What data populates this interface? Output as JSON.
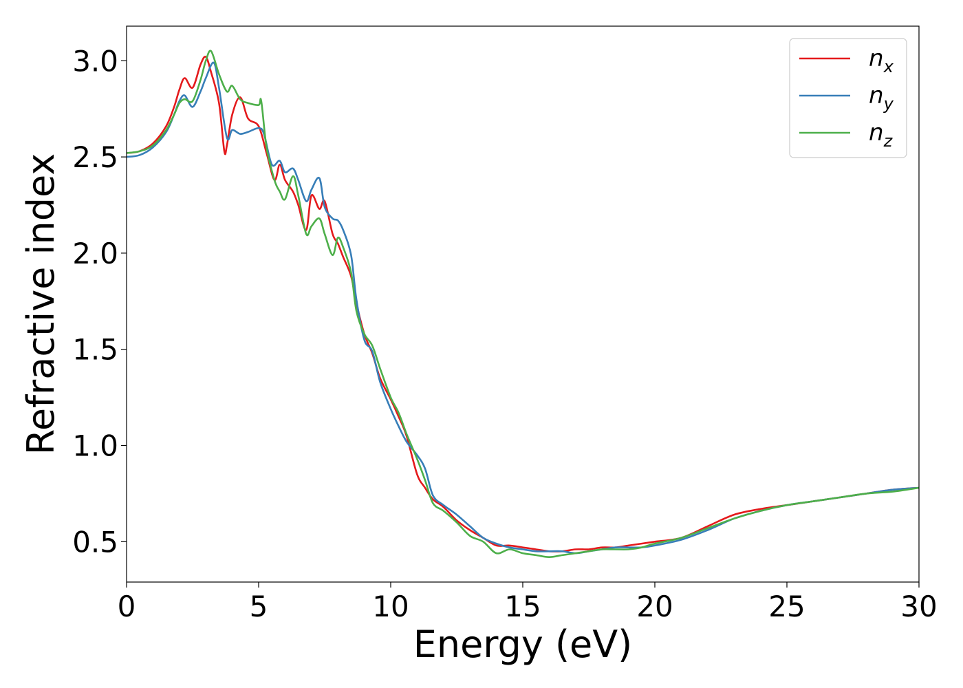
{
  "chart_data": {
    "type": "line",
    "xlabel": "Energy (eV)",
    "ylabel": "Refractive index",
    "xlim": [
      0,
      30
    ],
    "ylim": [
      0.29,
      3.18
    ],
    "xticks": [
      0,
      5,
      10,
      15,
      20,
      25,
      30
    ],
    "xtick_labels": [
      "0",
      "5",
      "10",
      "15",
      "20",
      "25",
      "30"
    ],
    "yticks": [
      0.5,
      1.0,
      1.5,
      2.0,
      2.5,
      3.0
    ],
    "ytick_labels": [
      "0.5",
      "1.0",
      "1.5",
      "2.0",
      "2.5",
      "3.0"
    ],
    "grid": false,
    "legend_position": "top-right",
    "series": [
      {
        "name": "n",
        "subscript": "x",
        "color": "#e41a1c",
        "x": [
          0,
          0.5,
          1.0,
          1.5,
          1.8,
          2.0,
          2.2,
          2.5,
          2.8,
          3.0,
          3.2,
          3.5,
          3.7,
          3.8,
          4.0,
          4.3,
          4.6,
          5.0,
          5.3,
          5.6,
          5.8,
          6.0,
          6.3,
          6.5,
          6.8,
          7.0,
          7.3,
          7.5,
          7.8,
          8.0,
          8.2,
          8.5,
          8.7,
          9.0,
          9.3,
          9.6,
          10.0,
          10.3,
          10.6,
          11.0,
          11.3,
          11.6,
          12.0,
          12.5,
          13.0,
          13.5,
          14.0,
          14.5,
          15.0,
          15.5,
          16.0,
          16.5,
          17.0,
          17.5,
          18.0,
          18.5,
          19.0,
          19.5,
          20.0,
          21.0,
          22.0,
          23.0,
          24.0,
          25.0,
          26.0,
          27.0,
          28.0,
          29.0,
          30.0
        ],
        "values": [
          2.52,
          2.53,
          2.57,
          2.66,
          2.76,
          2.85,
          2.91,
          2.86,
          2.98,
          3.02,
          2.94,
          2.78,
          2.53,
          2.56,
          2.72,
          2.81,
          2.7,
          2.66,
          2.52,
          2.38,
          2.46,
          2.38,
          2.32,
          2.25,
          2.12,
          2.3,
          2.23,
          2.27,
          2.1,
          2.05,
          1.98,
          1.88,
          1.74,
          1.58,
          1.48,
          1.35,
          1.24,
          1.15,
          1.05,
          0.85,
          0.78,
          0.72,
          0.68,
          0.61,
          0.56,
          0.52,
          0.48,
          0.48,
          0.47,
          0.46,
          0.45,
          0.45,
          0.46,
          0.46,
          0.47,
          0.47,
          0.48,
          0.49,
          0.5,
          0.52,
          0.58,
          0.64,
          0.67,
          0.69,
          0.71,
          0.73,
          0.75,
          0.77,
          0.78
        ]
      },
      {
        "name": "n",
        "subscript": "y",
        "color": "#377eb8",
        "x": [
          0,
          0.5,
          1.0,
          1.5,
          1.8,
          2.0,
          2.2,
          2.5,
          2.8,
          3.0,
          3.3,
          3.5,
          3.8,
          4.0,
          4.3,
          4.6,
          5.0,
          5.2,
          5.5,
          5.8,
          6.0,
          6.3,
          6.5,
          6.8,
          7.0,
          7.3,
          7.5,
          7.8,
          8.0,
          8.2,
          8.5,
          8.7,
          9.0,
          9.3,
          9.6,
          10.0,
          10.3,
          10.6,
          11.0,
          11.3,
          11.6,
          12.0,
          12.5,
          13.0,
          13.5,
          14.0,
          14.5,
          15.0,
          15.5,
          16.0,
          16.5,
          17.0,
          17.5,
          18.0,
          18.5,
          19.0,
          19.5,
          20.0,
          21.0,
          22.0,
          23.0,
          24.0,
          25.0,
          26.0,
          27.0,
          28.0,
          29.0,
          30.0
        ],
        "values": [
          2.5,
          2.51,
          2.55,
          2.63,
          2.72,
          2.79,
          2.82,
          2.76,
          2.84,
          2.91,
          2.99,
          2.86,
          2.6,
          2.64,
          2.62,
          2.63,
          2.65,
          2.62,
          2.46,
          2.48,
          2.42,
          2.44,
          2.38,
          2.27,
          2.33,
          2.39,
          2.24,
          2.18,
          2.17,
          2.12,
          1.99,
          1.76,
          1.55,
          1.49,
          1.33,
          1.19,
          1.1,
          1.02,
          0.95,
          0.88,
          0.74,
          0.69,
          0.64,
          0.58,
          0.52,
          0.49,
          0.47,
          0.46,
          0.45,
          0.45,
          0.45,
          0.44,
          0.45,
          0.46,
          0.47,
          0.47,
          0.47,
          0.48,
          0.51,
          0.56,
          0.62,
          0.66,
          0.69,
          0.71,
          0.73,
          0.75,
          0.77,
          0.78
        ]
      },
      {
        "name": "n",
        "subscript": "z",
        "color": "#4daf4a",
        "x": [
          0,
          0.5,
          1.0,
          1.5,
          1.8,
          2.0,
          2.2,
          2.5,
          2.8,
          3.0,
          3.2,
          3.5,
          3.8,
          4.0,
          4.3,
          4.6,
          5.0,
          5.1,
          5.3,
          5.6,
          5.8,
          6.0,
          6.3,
          6.5,
          6.8,
          7.0,
          7.3,
          7.5,
          7.8,
          8.0,
          8.2,
          8.5,
          8.7,
          9.0,
          9.3,
          9.6,
          10.0,
          10.3,
          10.6,
          11.0,
          11.3,
          11.6,
          12.0,
          12.5,
          13.0,
          13.5,
          14.0,
          14.5,
          15.0,
          15.5,
          16.0,
          16.5,
          17.0,
          17.5,
          18.0,
          18.5,
          19.0,
          19.5,
          20.0,
          21.0,
          22.0,
          23.0,
          24.0,
          25.0,
          26.0,
          27.0,
          28.0,
          29.0,
          30.0
        ],
        "values": [
          2.52,
          2.53,
          2.56,
          2.64,
          2.72,
          2.78,
          2.8,
          2.79,
          2.9,
          3.0,
          3.05,
          2.93,
          2.84,
          2.87,
          2.8,
          2.78,
          2.77,
          2.79,
          2.55,
          2.38,
          2.32,
          2.28,
          2.4,
          2.3,
          2.1,
          2.14,
          2.18,
          2.1,
          1.99,
          2.08,
          2.03,
          1.9,
          1.7,
          1.58,
          1.52,
          1.4,
          1.25,
          1.17,
          1.06,
          0.93,
          0.82,
          0.7,
          0.66,
          0.6,
          0.53,
          0.5,
          0.44,
          0.46,
          0.44,
          0.43,
          0.42,
          0.43,
          0.44,
          0.45,
          0.46,
          0.46,
          0.46,
          0.47,
          0.49,
          0.52,
          0.57,
          0.62,
          0.66,
          0.69,
          0.71,
          0.73,
          0.75,
          0.76,
          0.78
        ]
      }
    ]
  }
}
